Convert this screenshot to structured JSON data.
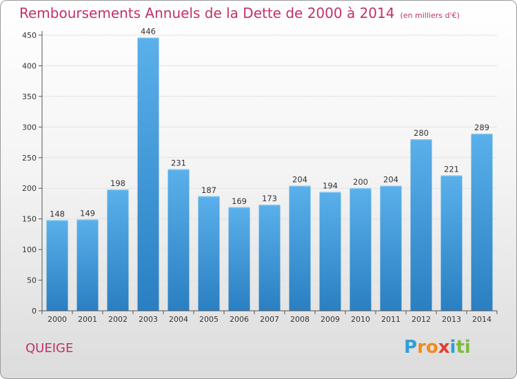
{
  "title": "Remboursements Annuels de la Dette de 2000 à 2014",
  "unit_note": "(en milliers d'€)",
  "commune": "QUEIGE",
  "logo_text": "Proxiti",
  "colors": {
    "title": "#c2306a",
    "bar_top": "#5ab0ea",
    "bar_bottom": "#2a7fc2",
    "grid": "#e2e2e2"
  },
  "chart_data": {
    "type": "bar",
    "title": "Remboursements Annuels de la Dette de 2000 à 2014",
    "subtitle": "(en milliers d'€)",
    "xlabel": "",
    "ylabel": "",
    "categories": [
      "2000",
      "2001",
      "2002",
      "2003",
      "2004",
      "2005",
      "2006",
      "2007",
      "2008",
      "2009",
      "2010",
      "2011",
      "2012",
      "2013",
      "2014"
    ],
    "values": [
      148,
      149,
      198,
      446,
      231,
      187,
      169,
      173,
      204,
      194,
      200,
      204,
      280,
      221,
      289
    ],
    "ylim": [
      0,
      450
    ],
    "yticks": [
      0,
      50,
      100,
      150,
      200,
      250,
      300,
      350,
      400,
      450
    ],
    "grid": true,
    "legend": "none"
  }
}
